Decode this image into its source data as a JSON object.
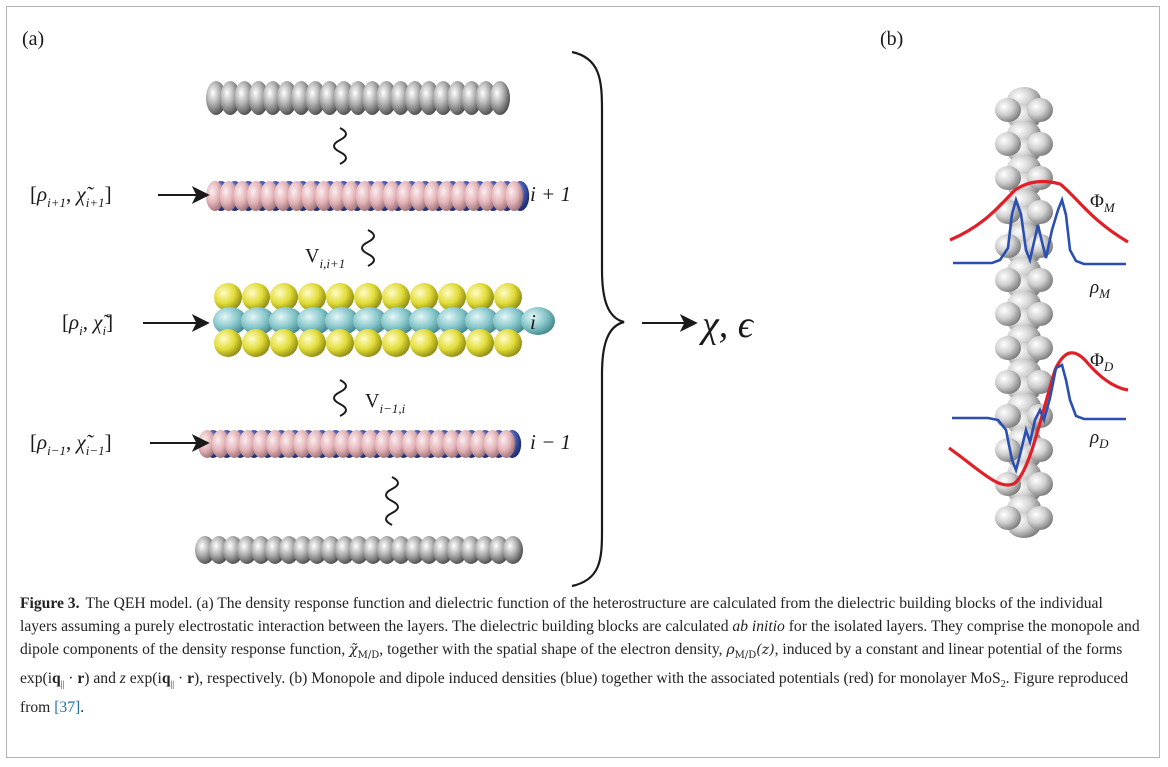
{
  "figure": {
    "panel_a_label": "(a)",
    "panel_b_label": "(b)",
    "layer_labels": {
      "top": "i + 1",
      "mid": "i",
      "bot": "i − 1"
    },
    "input_labels": {
      "top_rho": "ρ",
      "top_rho_sub": "i+1",
      "top_chi_sub": "i+1",
      "mid_rho_sub": "i",
      "mid_chi_sub": "i",
      "bot_rho_sub": "i−1",
      "bot_chi_sub": "i−1",
      "chi": "χ̃"
    },
    "coupling_labels": {
      "upper": "V",
      "upper_sub": "i,i+1",
      "lower": "V",
      "lower_sub": "i−1,i"
    },
    "output_label": "χ, ϵ",
    "potential_labels": {
      "phi": "Φ",
      "rho": "ρ",
      "M": "M",
      "D": "D"
    },
    "colors": {
      "density": "#2b4fb0",
      "potential": "#e01f26",
      "sulfur": "#e3df3a",
      "metal": "#7fc4c8",
      "pink": "#e7b9bd",
      "blue_atom": "#3f57b0",
      "grey_atom": "#8c8c8c"
    }
  },
  "caption": {
    "label": "Figure 3.",
    "part1": "The QEH model. (a) The density response function and dielectric function of the heterostructure are calculated from the dielectric building blocks of the individual layers assuming a purely electrostatic interaction between the layers. The dielectric building blocks are calculated ",
    "ab_initio": "ab initio",
    "part2": " for the isolated layers. They comprise the monopole and dipole components of the density response function, ",
    "chi_md": "χ̃",
    "chi_md_sub": "M/D",
    "part3": ", together with the spatial shape of the electron density, ",
    "rho_md": "ρ",
    "rho_md_sub": "M/D",
    "rho_md_arg": "(z)",
    "part4": ", induced by a constant and linear potential of the forms exp(i",
    "q": "q",
    "q_sub": "||",
    "dot_r": " · ",
    "r": "r",
    "part5": ") and ",
    "z": "z",
    "part6": " exp(i",
    "part7": "), respectively. (b) Monopole and dipole induced densities (blue) together with the associated potentials (red) for monolayer MoS",
    "mos2_sub": "2",
    "part8": ". Figure reproduced from ",
    "ref": "[37]",
    "part9": "."
  }
}
